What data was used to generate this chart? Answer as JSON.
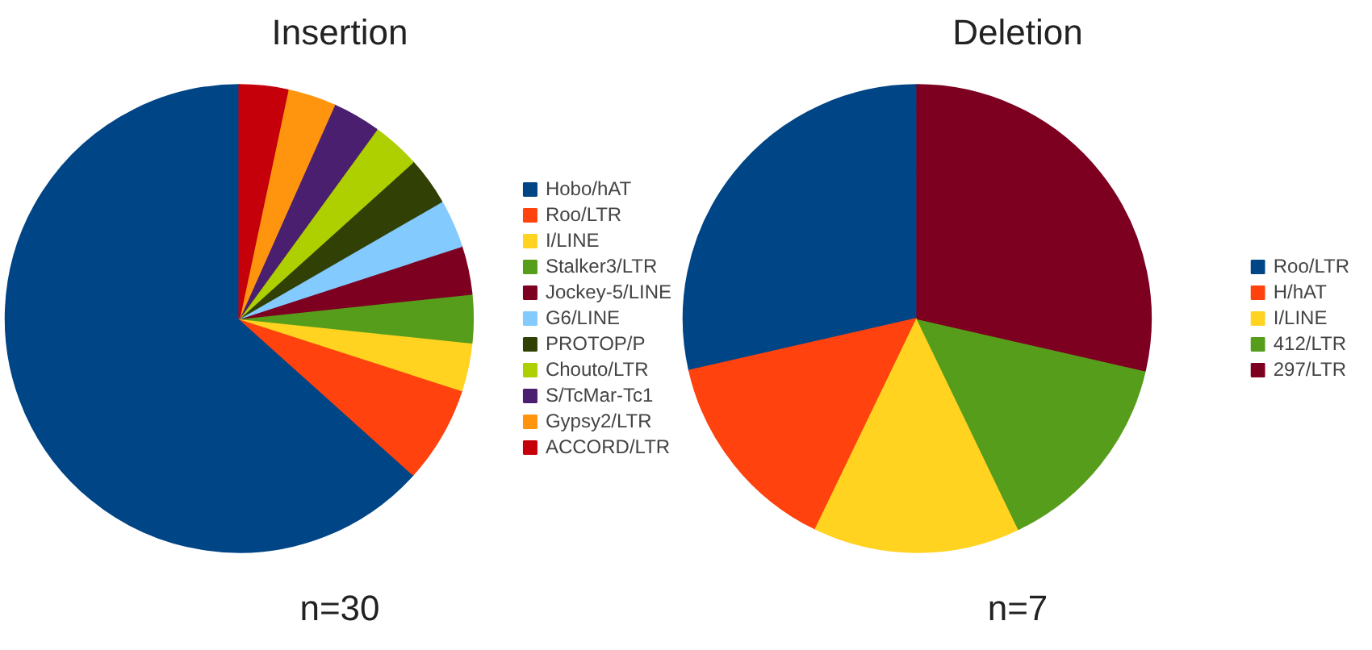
{
  "chart_data": [
    {
      "type": "pie",
      "title": "Insertion",
      "annotations": [
        "n=30"
      ],
      "legend": "right",
      "categories": [
        "Hobo/hAT",
        "Roo/LTR",
        "I/LINE",
        "Stalker3/LTR",
        "Jockey-5/LINE",
        "G6/LINE",
        "PROTOP/P",
        "Chouto/LTR",
        "S/TcMar-Tc1",
        "Gypsy2/LTR",
        "ACCORD/LTR"
      ],
      "values": [
        63.34,
        6.67,
        3.33,
        3.33,
        3.33,
        3.33,
        3.33,
        3.33,
        3.33,
        3.33,
        3.33
      ],
      "colors": [
        "#004586",
        "#ff420e",
        "#ffd320",
        "#579d1c",
        "#7e0021",
        "#83caff",
        "#314004",
        "#aecf00",
        "#4b1f6f",
        "#ff950e",
        "#c5000b"
      ]
    },
    {
      "type": "pie",
      "title": "Deletion",
      "annotations": [
        "n=7"
      ],
      "legend": "right",
      "categories": [
        "Roo/LTR",
        "H/hAT",
        "I/LINE",
        "412/LTR",
        "297/LTR"
      ],
      "values": [
        28.57,
        14.28,
        14.29,
        14.29,
        28.57
      ],
      "colors": [
        "#004586",
        "#ff420e",
        "#ffd320",
        "#579d1c",
        "#7e0021"
      ]
    }
  ]
}
